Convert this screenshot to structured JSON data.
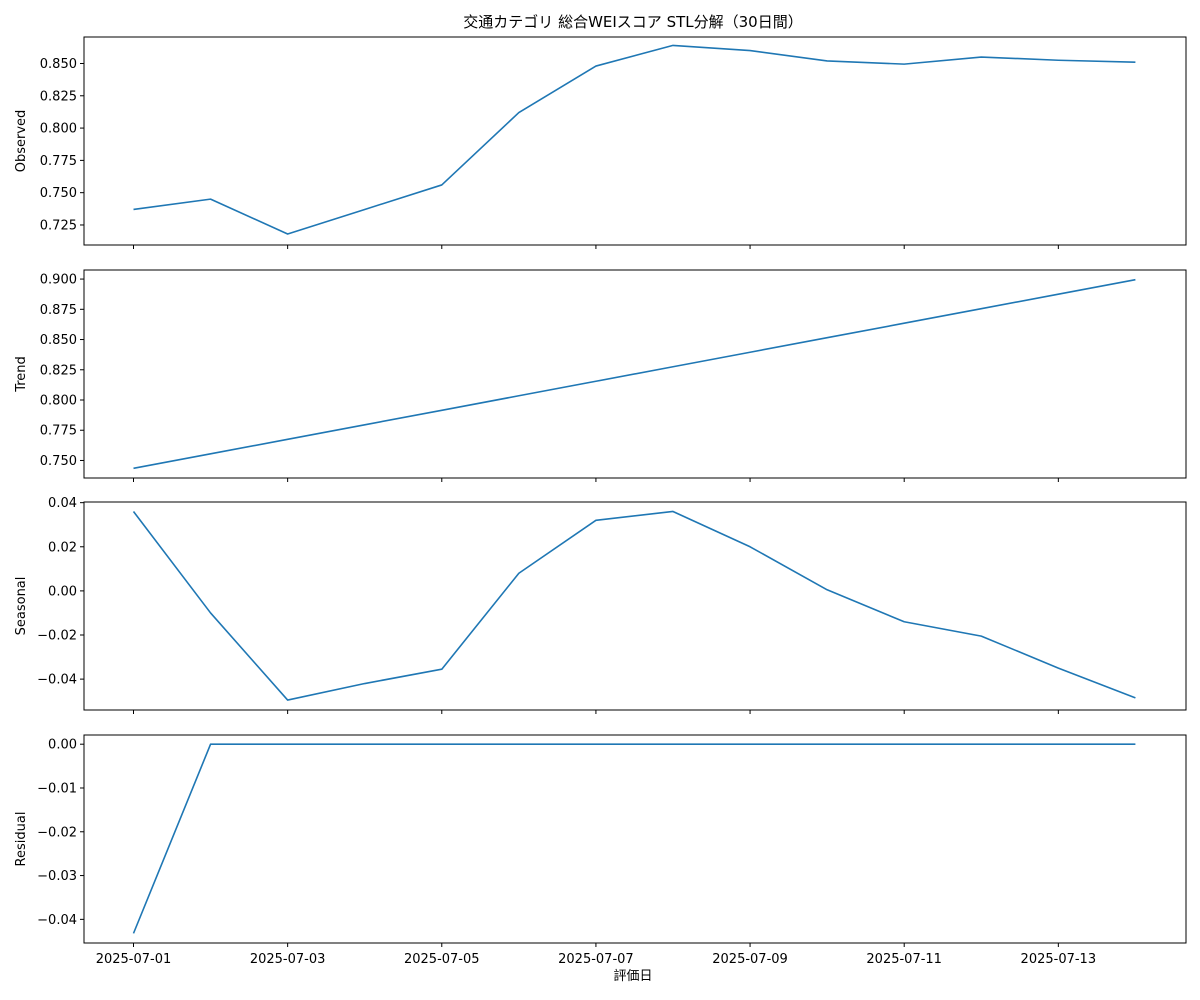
{
  "chart_data": {
    "type": "line",
    "title": "交通カテゴリ 総合WEIスコア STL分解（30日間）",
    "xlabel": "評価日",
    "x": [
      "2025-07-01",
      "2025-07-02",
      "2025-07-03",
      "2025-07-04",
      "2025-07-05",
      "2025-07-06",
      "2025-07-07",
      "2025-07-08",
      "2025-07-09",
      "2025-07-10",
      "2025-07-11",
      "2025-07-12",
      "2025-07-13",
      "2025-07-14"
    ],
    "xticks": [
      "2025-07-01",
      "2025-07-03",
      "2025-07-05",
      "2025-07-07",
      "2025-07-09",
      "2025-07-11",
      "2025-07-13"
    ],
    "line_color": "#1f77b4",
    "grid": false,
    "panels": [
      {
        "name": "observed",
        "ylabel": "Observed",
        "ylim": [
          0.7095,
          0.8705
        ],
        "yticks": [
          "0.725",
          "0.750",
          "0.775",
          "0.800",
          "0.825",
          "0.850"
        ],
        "values": [
          0.737,
          0.745,
          0.718,
          0.737,
          0.756,
          0.812,
          0.848,
          0.864,
          0.86,
          0.852,
          0.8495,
          0.855,
          0.8525,
          0.851
        ]
      },
      {
        "name": "trend",
        "ylabel": "Trend",
        "ylim": [
          0.7355,
          0.9075
        ],
        "yticks": [
          "0.750",
          "0.775",
          "0.800",
          "0.825",
          "0.850",
          "0.875",
          "0.900"
        ],
        "values": [
          0.7435,
          0.7555,
          0.7675,
          0.7795,
          0.7915,
          0.8035,
          0.8155,
          0.8275,
          0.8395,
          0.8515,
          0.8635,
          0.8755,
          0.8875,
          0.8995
        ]
      },
      {
        "name": "seasonal",
        "ylabel": "Seasonal",
        "ylim": [
          -0.054,
          0.0403
        ],
        "yticks": [
          "0.04",
          "0.02",
          "0.00",
          "−0.02",
          "−0.04"
        ],
        "values": [
          0.036,
          -0.01,
          -0.0495,
          -0.042,
          -0.0355,
          0.008,
          0.032,
          0.036,
          0.02,
          0.0005,
          -0.014,
          -0.0205,
          -0.035,
          -0.0485
        ]
      },
      {
        "name": "residual",
        "ylabel": "Residual",
        "ylim": [
          -0.0454,
          0.0021
        ],
        "yticks": [
          "0.00",
          "−0.01",
          "−0.02",
          "−0.03",
          "−0.04"
        ],
        "values": [
          -0.0432,
          0.0,
          0.0,
          0.0,
          0.0,
          0.0,
          0.0,
          0.0,
          0.0,
          0.0,
          0.0,
          0.0,
          0.0,
          0.0
        ]
      }
    ]
  }
}
